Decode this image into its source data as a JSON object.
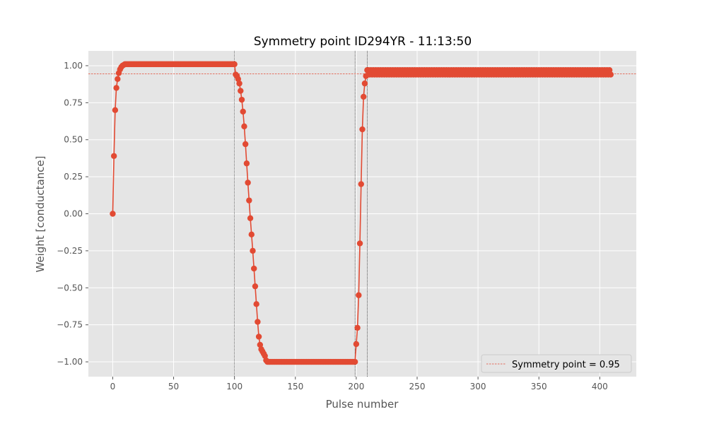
{
  "chart_data": {
    "type": "line",
    "title": "Symmetry point ID294YR - 11:13:50",
    "xlabel": "Pulse number",
    "ylabel": "Weight [conductance]",
    "xlim": [
      -20,
      430
    ],
    "ylim": [
      -1.1,
      1.1
    ],
    "xticks": [
      0,
      50,
      100,
      150,
      200,
      250,
      300,
      350,
      400
    ],
    "yticks": [
      -1.0,
      -0.75,
      -0.5,
      -0.25,
      0.0,
      0.25,
      0.5,
      0.75,
      1.0
    ],
    "xtick_labels": [
      "0",
      "50",
      "100",
      "150",
      "200",
      "250",
      "300",
      "350",
      "400"
    ],
    "ytick_labels": [
      "−1.00",
      "−0.75",
      "−0.50",
      "−0.25",
      "0.00",
      "0.25",
      "0.50",
      "0.75",
      "1.00"
    ],
    "grid": true,
    "style": "ggplot",
    "series_color": "#E24A33",
    "symmetry_line": {
      "y": 0.945,
      "color": "#E24A33",
      "style": "dashed"
    },
    "vertical_lines": [
      100,
      199,
      209
    ],
    "legend": {
      "position": "lower-right",
      "entries": [
        "Symmetry point = 0.95"
      ]
    },
    "series": [
      {
        "segments": [
          {
            "x_start": 0,
            "y": [
              0.0,
              0.39,
              0.7,
              0.85,
              0.91,
              0.95,
              0.975,
              0.99,
              1.0,
              1.005
            ]
          },
          {
            "x_start": 10,
            "x_end": 100,
            "y_const": 1.01
          },
          {
            "x_start": 101,
            "y": [
              0.94,
              0.93,
              0.91,
              0.88,
              0.83,
              0.77,
              0.69,
              0.59,
              0.47,
              0.34,
              0.21,
              0.09,
              -0.03,
              -0.14,
              -0.25,
              -0.37,
              -0.49,
              -0.61,
              -0.73,
              -0.83,
              -0.885,
              -0.915,
              -0.93,
              -0.945,
              -0.96,
              -0.99,
              -1.0
            ]
          },
          {
            "x_start": 128,
            "x_end": 199,
            "y_const": -1.0
          },
          {
            "x_start": 200,
            "y": [
              -0.88,
              -0.77,
              -0.55,
              -0.2,
              0.2,
              0.57,
              0.79,
              0.88,
              0.93,
              0.97
            ]
          },
          {
            "x_start": 210,
            "x_end": 408,
            "pattern": [
              0.97,
              0.94
            ]
          },
          {
            "x_start": 409,
            "y": [
              0.94
            ]
          }
        ]
      }
    ]
  }
}
